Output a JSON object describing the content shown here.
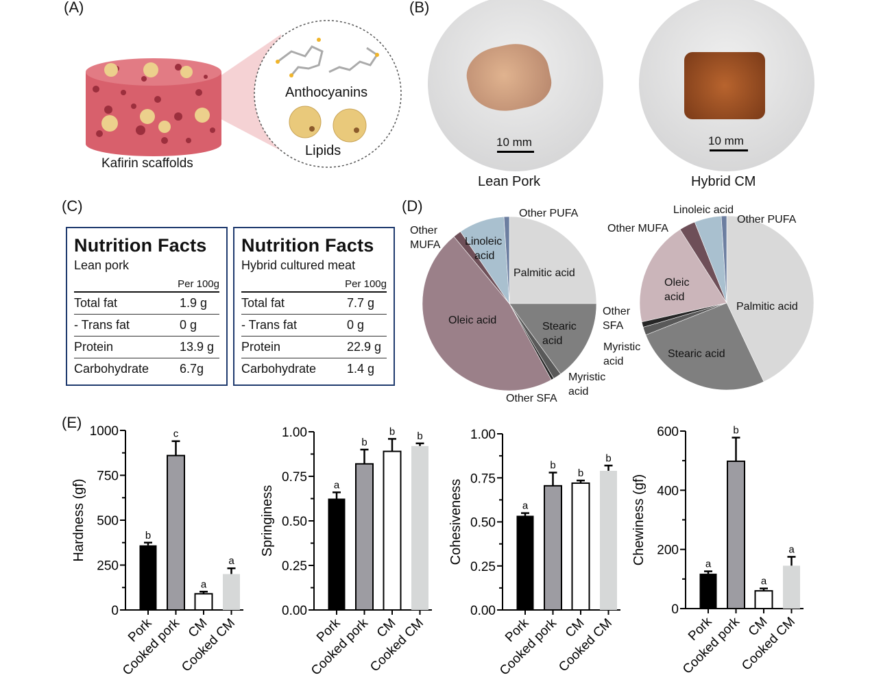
{
  "panel_labels": {
    "a": "(A)",
    "b": "(B)",
    "c": "(C)",
    "d": "(D)",
    "e": "(E)"
  },
  "panel_a": {
    "scaffold_label": "Kafirin scaffolds",
    "inset_label_1": "Anthocyanins",
    "inset_label_2": "Lipids"
  },
  "panel_b": {
    "photos": [
      {
        "label": "Lean Pork",
        "scale_bar": "10 mm"
      },
      {
        "label": "Hybrid CM",
        "scale_bar": "10 mm"
      }
    ]
  },
  "panel_c": {
    "tables": [
      {
        "title": "Nutrition Facts",
        "subtitle": "Lean pork",
        "per": "Per 100g",
        "rows": [
          [
            "Total fat",
            "1.9 g"
          ],
          [
            "- Trans fat",
            "0 g"
          ],
          [
            "Protein",
            "13.9 g"
          ],
          [
            "Carbohydrate",
            "6.7g"
          ]
        ]
      },
      {
        "title": "Nutrition Facts",
        "subtitle": "Hybrid cultured meat",
        "per": "Per 100g",
        "rows": [
          [
            "Total fat",
            "7.7 g"
          ],
          [
            "- Trans fat",
            "0 g"
          ],
          [
            "Protein",
            "22.9 g"
          ],
          [
            "Carbohydrate",
            "1.4 g"
          ]
        ]
      }
    ]
  },
  "chart_data": [
    {
      "type": "pie",
      "title": "",
      "slices": [
        {
          "label": "Palmitic acid",
          "value": 25,
          "color": "#d9d9d9"
        },
        {
          "label": "Stearic acid",
          "value": 15,
          "color": "#7f7f7f"
        },
        {
          "label": "Myristic acid",
          "value": 1.5,
          "color": "#595959"
        },
        {
          "label": "Other SFA",
          "value": 0.5,
          "color": "#262626"
        },
        {
          "label": "Oleic acid",
          "value": 47,
          "color": "#9b8089"
        },
        {
          "label": "Other MUFA",
          "value": 1.5,
          "color": "#6e4f58"
        },
        {
          "label": "Linoleic acid",
          "value": 8.5,
          "color": "#a9c0cf"
        },
        {
          "label": "Other PUFA",
          "value": 1,
          "color": "#6c7ea0"
        }
      ],
      "label_text": {
        "palmitic": "Palmitic acid",
        "stearic_1": "Stearic",
        "stearic_2": "acid",
        "myristic_1": "Myristic",
        "myristic_2": "acid",
        "other_sfa": "Other SFA",
        "oleic": "Oleic acid",
        "other_mufa_1": "Other",
        "other_mufa_2": "MUFA",
        "linoleic_1": "Linoleic",
        "linoleic_2": "acid",
        "other_pufa": "Other PUFA"
      }
    },
    {
      "type": "pie",
      "title": "",
      "slices": [
        {
          "label": "Palmitic acid",
          "value": 43,
          "color": "#d9d9d9"
        },
        {
          "label": "Stearic acid",
          "value": 26,
          "color": "#7f7f7f"
        },
        {
          "label": "Myristic acid",
          "value": 1.5,
          "color": "#595959"
        },
        {
          "label": "Other SFA",
          "value": 1,
          "color": "#262626"
        },
        {
          "label": "Oleic acid",
          "value": 19.5,
          "color": "#cbb5ba"
        },
        {
          "label": "Other MUFA",
          "value": 3,
          "color": "#6e4f58"
        },
        {
          "label": "Linoleic acid",
          "value": 5,
          "color": "#a9c0cf"
        },
        {
          "label": "Other PUFA",
          "value": 1,
          "color": "#6c7ea0"
        }
      ],
      "label_text": {
        "palmitic": "Palmitic acid",
        "stearic": "Stearic acid",
        "myristic_1": "Myristic",
        "myristic_2": "acid",
        "other_sfa_1": "Other",
        "other_sfa_2": "SFA",
        "oleic_1": "Oleic",
        "oleic_2": "acid",
        "other_mufa": "Other MUFA",
        "linoleic": "Linoleic acid",
        "other_pufa": "Other PUFA"
      }
    },
    {
      "type": "bar",
      "ylabel": "Hardness (gf)",
      "ylim": [
        0,
        1000
      ],
      "yticks": [
        "0",
        "250",
        "500",
        "750",
        "1000"
      ],
      "categories": [
        "Pork",
        "Cooked pork",
        "CM",
        "Cooked CM"
      ],
      "values": [
        360,
        860,
        90,
        200
      ],
      "errors": [
        15,
        80,
        12,
        32
      ],
      "letters": [
        "b",
        "c",
        "a",
        "a"
      ]
    },
    {
      "type": "bar",
      "ylabel": "Springiness",
      "ylim": [
        0,
        1
      ],
      "yticks": [
        "0.00",
        "0.25",
        "0.50",
        "0.75",
        "1.00"
      ],
      "categories": [
        "Pork",
        "Cooked pork",
        "CM",
        "Cooked CM"
      ],
      "values": [
        0.625,
        0.82,
        0.89,
        0.92
      ],
      "errors": [
        0.035,
        0.08,
        0.07,
        0.015
      ],
      "letters": [
        "a",
        "b",
        "b",
        "b"
      ]
    },
    {
      "type": "bar",
      "ylabel": "Cohesiveness",
      "ylim": [
        0,
        1
      ],
      "yticks": [
        "0.00",
        "0.25",
        "0.50",
        "0.75",
        "1.00"
      ],
      "categories": [
        "Pork",
        "Cooked pork",
        "CM",
        "Cooked CM"
      ],
      "values": [
        0.535,
        0.705,
        0.72,
        0.79
      ],
      "errors": [
        0.015,
        0.075,
        0.015,
        0.03
      ],
      "letters": [
        "a",
        "b",
        "b",
        "b"
      ]
    },
    {
      "type": "bar",
      "ylabel": "Chewiness (gf)",
      "ylim": [
        0,
        600
      ],
      "yticks": [
        "0",
        "200",
        "400",
        "600"
      ],
      "categories": [
        "Pork",
        "Cooked pork",
        "CM",
        "Cooked CM"
      ],
      "values": [
        118,
        498,
        60,
        145
      ],
      "errors": [
        8,
        80,
        8,
        30
      ],
      "letters": [
        "a",
        "b",
        "a",
        "a"
      ]
    }
  ],
  "bar_colors": [
    "#000000",
    "#9d9ca2",
    "#ffffff",
    "#d6d8d8"
  ]
}
